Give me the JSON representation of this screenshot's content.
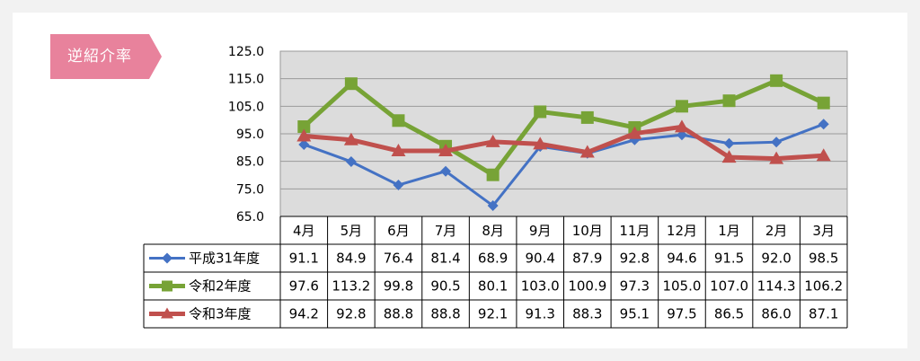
{
  "badge": {
    "label": "逆紹介率",
    "color": "#e8829c"
  },
  "chart_data": {
    "type": "line",
    "title": "",
    "xlabel": "",
    "ylabel": "",
    "categories": [
      "4月",
      "5月",
      "6月",
      "7月",
      "8月",
      "9月",
      "10月",
      "11月",
      "12月",
      "1月",
      "2月",
      "3月"
    ],
    "y_ticks": [
      "125.0",
      "115.0",
      "105.0",
      "95.0",
      "85.0",
      "75.0",
      "65.0"
    ],
    "ylim": [
      65,
      125
    ],
    "grid": true,
    "series": [
      {
        "name": "平成31年度",
        "color": "#4472c4",
        "marker": "diamond",
        "values": [
          91.1,
          84.9,
          76.4,
          81.4,
          68.9,
          90.4,
          87.9,
          92.8,
          94.6,
          91.5,
          92.0,
          98.5
        ],
        "labels": [
          "91.1",
          "84.9",
          "76.4",
          "81.4",
          "68.9",
          "90.4",
          "87.9",
          "92.8",
          "94.6",
          "91.5",
          "92.0",
          "98.5"
        ]
      },
      {
        "name": "令和2年度",
        "color": "#77a336",
        "marker": "square",
        "values": [
          97.6,
          113.2,
          99.8,
          90.5,
          80.1,
          103.0,
          100.9,
          97.3,
          105.0,
          107.0,
          114.3,
          106.2
        ],
        "labels": [
          "97.6",
          "113.2",
          "99.8",
          "90.5",
          "80.1",
          "103.0",
          "100.9",
          "97.3",
          "105.0",
          "107.0",
          "114.3",
          "106.2"
        ]
      },
      {
        "name": "令和3年度",
        "color": "#c0504d",
        "marker": "triangle",
        "values": [
          94.2,
          92.8,
          88.8,
          88.8,
          92.1,
          91.3,
          88.3,
          95.1,
          97.5,
          86.5,
          86.0,
          87.1
        ],
        "labels": [
          "94.2",
          "92.8",
          "88.8",
          "88.8",
          "92.1",
          "91.3",
          "88.3",
          "95.1",
          "97.5",
          "86.5",
          "86.0",
          "87.1"
        ]
      }
    ]
  }
}
